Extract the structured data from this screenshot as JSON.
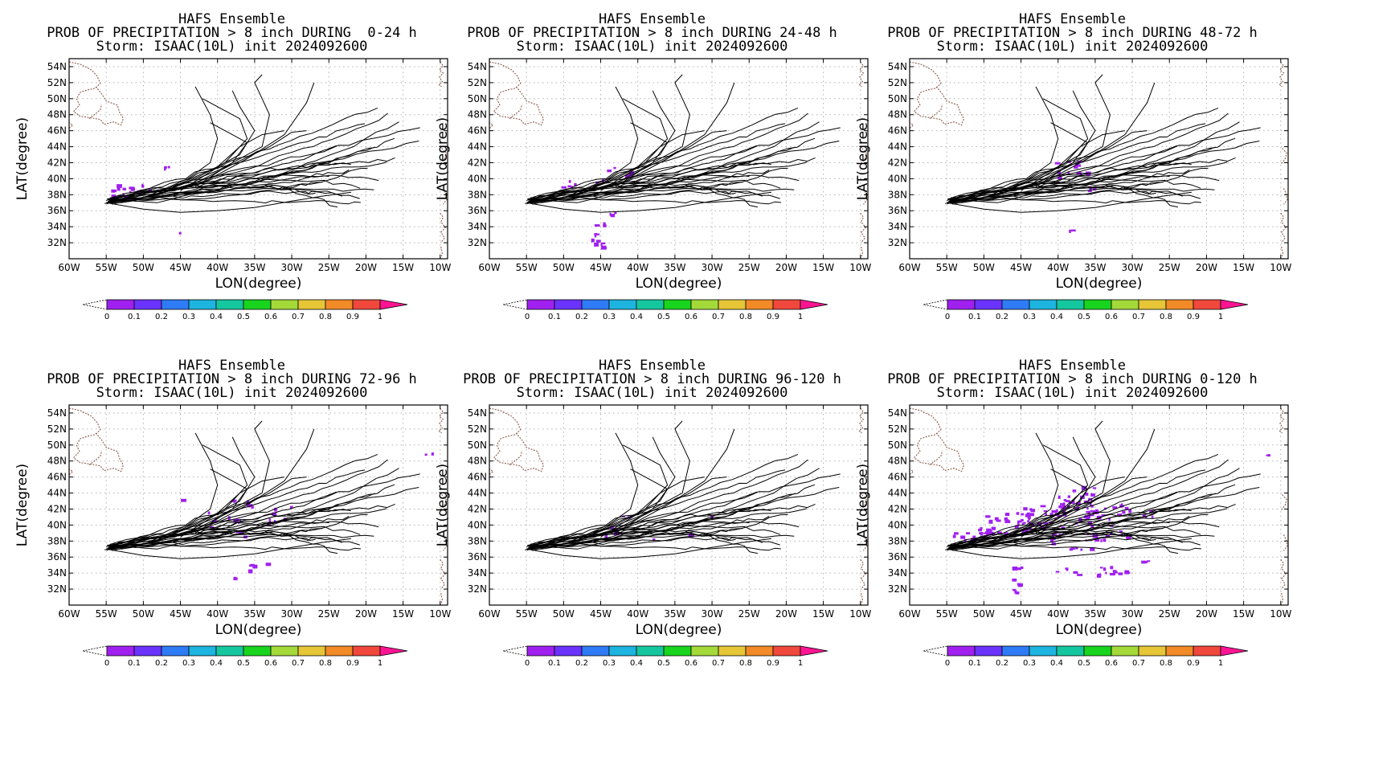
{
  "panels": [
    {
      "line1": "HAFS Ensemble",
      "line2": "PROB OF PRECIPITATION > 8 inch DURING  0-24 h",
      "line3": "Storm: ISAAC(10L) init 2024092600",
      "precip": "p1"
    },
    {
      "line1": "HAFS Ensemble",
      "line2": "PROB OF PRECIPITATION > 8 inch DURING 24-48 h",
      "line3": "Storm: ISAAC(10L) init 2024092600",
      "precip": "p2"
    },
    {
      "line1": "HAFS Ensemble",
      "line2": "PROB OF PRECIPITATION > 8 inch DURING 48-72 h",
      "line3": "Storm: ISAAC(10L) init 2024092600",
      "precip": "p3"
    },
    {
      "line1": "HAFS Ensemble",
      "line2": "PROB OF PRECIPITATION > 8 inch DURING 72-96 h",
      "line3": "Storm: ISAAC(10L) init 2024092600",
      "precip": "p4"
    },
    {
      "line1": "HAFS Ensemble",
      "line2": "PROB OF PRECIPITATION > 8 inch DURING 96-120 h",
      "line3": "Storm: ISAAC(10L) init 2024092600",
      "precip": "p5"
    },
    {
      "line1": "HAFS Ensemble",
      "line2": "PROB OF PRECIPITATION > 8 inch DURING 0-120 h",
      "line3": "Storm: ISAAC(10L) init 2024092600",
      "precip": "p6"
    }
  ],
  "axes": {
    "xlabel": "LON(degree)",
    "ylabel": "LAT(degree)",
    "lon_ticks": [
      "60W",
      "55W",
      "50W",
      "45W",
      "40W",
      "35W",
      "30W",
      "25W",
      "20W",
      "15W",
      "10W"
    ],
    "lat_ticks": [
      "54N",
      "52N",
      "50N",
      "48N",
      "46N",
      "44N",
      "42N",
      "40N",
      "38N",
      "36N",
      "34N",
      "32N"
    ],
    "lon_range": [
      -60,
      -9
    ],
    "lat_range": [
      30,
      55
    ]
  },
  "colorbar": {
    "labels": [
      "0",
      "0.1",
      "0.2",
      "0.3",
      "0.4",
      "0.5",
      "0.6",
      "0.7",
      "0.8",
      "0.9",
      "1"
    ],
    "colors": [
      "#a020f0",
      "#6a33ff",
      "#2f7bf6",
      "#1db4e0",
      "#15c79f",
      "#18d41e",
      "#a4d93a",
      "#e6c637",
      "#f18a27",
      "#f0483c"
    ],
    "over_color": "#ff1493",
    "under_color": "#ffffff"
  },
  "colors": {
    "track": "#000000",
    "precip": "#a020f0",
    "coast": "#8b5a4a",
    "grid": "#b0b0b0"
  }
}
